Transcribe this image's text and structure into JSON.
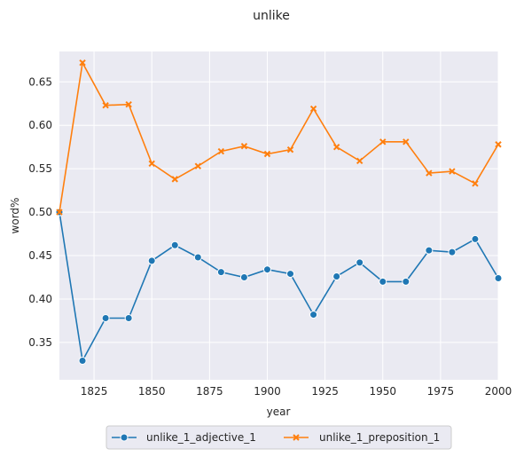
{
  "chart_data": {
    "type": "line",
    "title": "unlike",
    "xlabel": "year",
    "ylabel": "word%",
    "xlim": [
      1810,
      2000
    ],
    "ylim": [
      0.307,
      0.685
    ],
    "xticks": [
      1825,
      1850,
      1875,
      1900,
      1925,
      1950,
      1975,
      2000
    ],
    "yticks": [
      0.35,
      0.4,
      0.45,
      0.5,
      0.55,
      0.6,
      0.65
    ],
    "ytick_labels": [
      "0.35",
      "0.40",
      "0.45",
      "0.50",
      "0.55",
      "0.60",
      "0.65"
    ],
    "grid": true,
    "legend_position": "bottom-center-outside",
    "x": [
      1810,
      1820,
      1830,
      1840,
      1850,
      1860,
      1870,
      1880,
      1890,
      1900,
      1910,
      1920,
      1930,
      1940,
      1950,
      1960,
      1970,
      1980,
      1990,
      2000
    ],
    "series": [
      {
        "name": "unlike_1_adjective_1",
        "color": "#1f77b4",
        "marker": "circle",
        "values": [
          0.5,
          0.329,
          0.378,
          0.378,
          0.444,
          0.462,
          0.448,
          0.431,
          0.425,
          0.434,
          0.429,
          0.382,
          0.426,
          0.442,
          0.42,
          0.42,
          0.456,
          0.454,
          0.469,
          0.424
        ]
      },
      {
        "name": "unlike_1_preposition_1",
        "color": "#ff7f0e",
        "marker": "x",
        "values": [
          0.5,
          0.672,
          0.623,
          0.624,
          0.556,
          0.538,
          0.553,
          0.57,
          0.576,
          0.567,
          0.572,
          0.619,
          0.575,
          0.559,
          0.581,
          0.581,
          0.545,
          0.547,
          0.533,
          0.578
        ]
      }
    ]
  }
}
